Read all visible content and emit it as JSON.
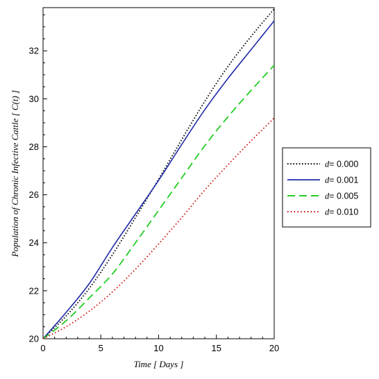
{
  "chart_data": {
    "type": "line",
    "xlabel": "Time [ Days ]",
    "ylabel": "Population of Chronic Infective Cattle [ C(t) ]",
    "xlim": [
      0,
      20
    ],
    "ylim": [
      20,
      33.8
    ],
    "xticks": [
      0,
      5,
      10,
      15,
      20
    ],
    "yticks": [
      20,
      22,
      24,
      26,
      28,
      30,
      32
    ],
    "grid": false,
    "legend_position": "right",
    "legend_var": "d",
    "x": [
      0,
      2,
      4,
      6,
      8,
      10,
      12,
      14,
      16,
      18,
      20
    ],
    "series": [
      {
        "name": "= 0.000",
        "color": "#000000",
        "dash": "dotted-dense",
        "values": [
          20.0,
          20.95,
          22.1,
          23.5,
          25.05,
          26.65,
          28.3,
          29.9,
          31.35,
          32.6,
          33.75
        ]
      },
      {
        "name": "= 0.001",
        "color": "#1f2aa8",
        "dash": "solid",
        "values": [
          20.0,
          21.1,
          22.3,
          23.8,
          25.2,
          26.6,
          28.1,
          29.55,
          30.85,
          32.05,
          33.25
        ]
      },
      {
        "name": "= 0.005",
        "color": "#22cc22",
        "dash": "dashed",
        "values": [
          20.0,
          20.75,
          21.7,
          22.7,
          24.0,
          25.35,
          26.7,
          28.05,
          29.25,
          30.35,
          31.4
        ]
      },
      {
        "name": "= 0.010",
        "color": "#cc1111",
        "dash": "dotted",
        "values": [
          20.0,
          20.5,
          21.15,
          21.95,
          22.9,
          23.95,
          25.05,
          26.2,
          27.25,
          28.25,
          29.2
        ]
      }
    ]
  }
}
